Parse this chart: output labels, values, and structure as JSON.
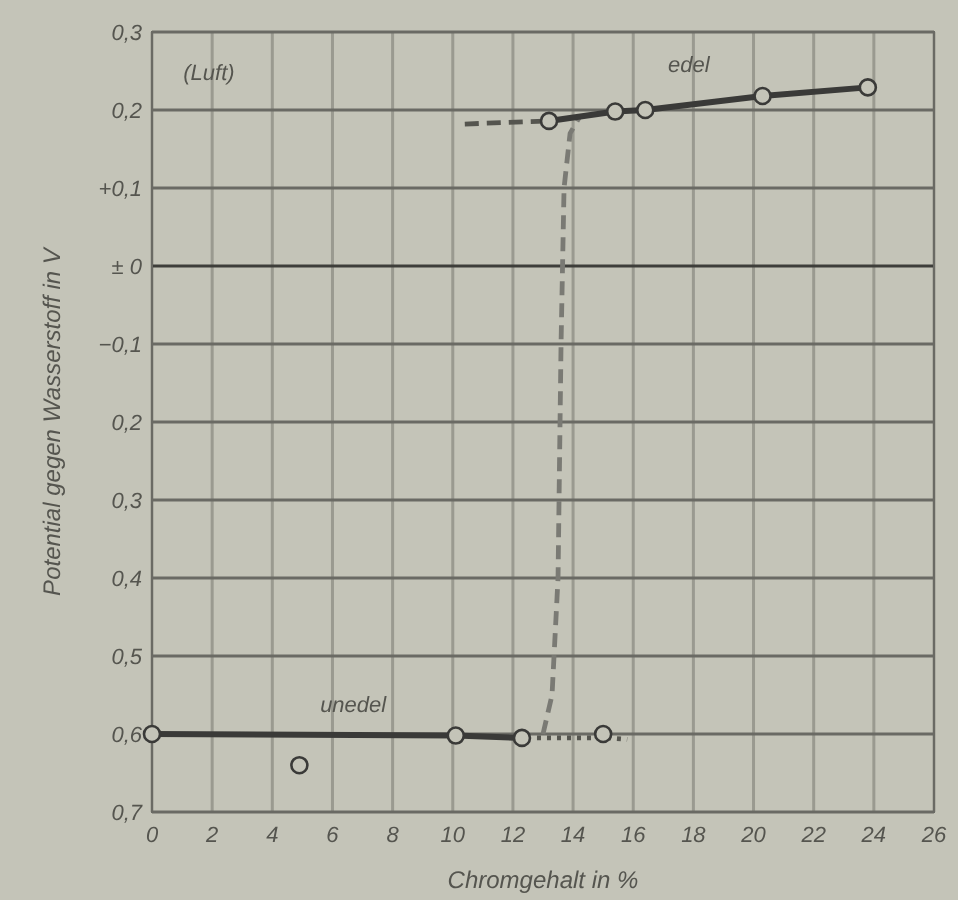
{
  "chart_data": {
    "type": "line",
    "xlabel": "Chromgehalt in %",
    "ylabel": "Potential gegen Wasserstoff in V",
    "xlim": [
      0,
      26
    ],
    "xticks": [
      0,
      2,
      4,
      6,
      8,
      10,
      12,
      14,
      16,
      18,
      20,
      22,
      24,
      26
    ],
    "ylim": [
      -0.7,
      0.3
    ],
    "yticks": [
      {
        "value": 0.3,
        "label": "0,3"
      },
      {
        "value": 0.2,
        "label": "0,2"
      },
      {
        "value": 0.1,
        "label": "+0,1"
      },
      {
        "value": 0,
        "label": "± 0"
      },
      {
        "value": -0.1,
        "label": "−0,1"
      },
      {
        "value": -0.2,
        "label": "0,2"
      },
      {
        "value": -0.3,
        "label": "0,3"
      },
      {
        "value": -0.4,
        "label": "0,4"
      },
      {
        "value": -0.5,
        "label": "0,5"
      },
      {
        "value": -0.6,
        "label": "0,6"
      },
      {
        "value": -0.7,
        "label": "0,7"
      }
    ],
    "grid": true,
    "series": [
      {
        "color": "#3a3a38",
        "x": [
          0,
          10.1,
          12.3
        ],
        "values": [
          -0.6,
          -0.602,
          -0.605
        ],
        "marker": "circle",
        "line_style": "solid"
      },
      {
        "color": "#55554f",
        "x": [
          12.8,
          13.4,
          14.0,
          14.6,
          15.2,
          15.8
        ],
        "values": [
          -0.605,
          -0.605,
          -0.605,
          -0.605,
          -0.605,
          -0.607
        ],
        "marker": "none",
        "line_style": "dotted"
      },
      {
        "color": "#7a7a74",
        "x": [
          13.0,
          13.3,
          13.5,
          13.6,
          13.7,
          13.9,
          14.2
        ],
        "values": [
          -0.6,
          -0.55,
          -0.4,
          -0.1,
          0.1,
          0.17,
          0.19
        ],
        "marker": "none",
        "line_style": "dashed"
      },
      {
        "color": "#55554f",
        "x": [
          10.4,
          13.2
        ],
        "values": [
          0.182,
          0.186
        ],
        "marker": "none",
        "line_style": "dashed"
      },
      {
        "color": "#3a3a38",
        "x": [
          13.2,
          15.4,
          16.4,
          20.3,
          23.8
        ],
        "values": [
          0.186,
          0.198,
          0.2,
          0.218,
          0.229
        ],
        "marker": "circle",
        "line_style": "solid"
      },
      {
        "type": "scatter",
        "color": "#3a3a38",
        "x": [
          4.9,
          15.0
        ],
        "values": [
          -0.64,
          -0.6
        ],
        "marker": "circle"
      }
    ],
    "annotations": [
      "(Luft)",
      "edel",
      "unedel"
    ]
  }
}
